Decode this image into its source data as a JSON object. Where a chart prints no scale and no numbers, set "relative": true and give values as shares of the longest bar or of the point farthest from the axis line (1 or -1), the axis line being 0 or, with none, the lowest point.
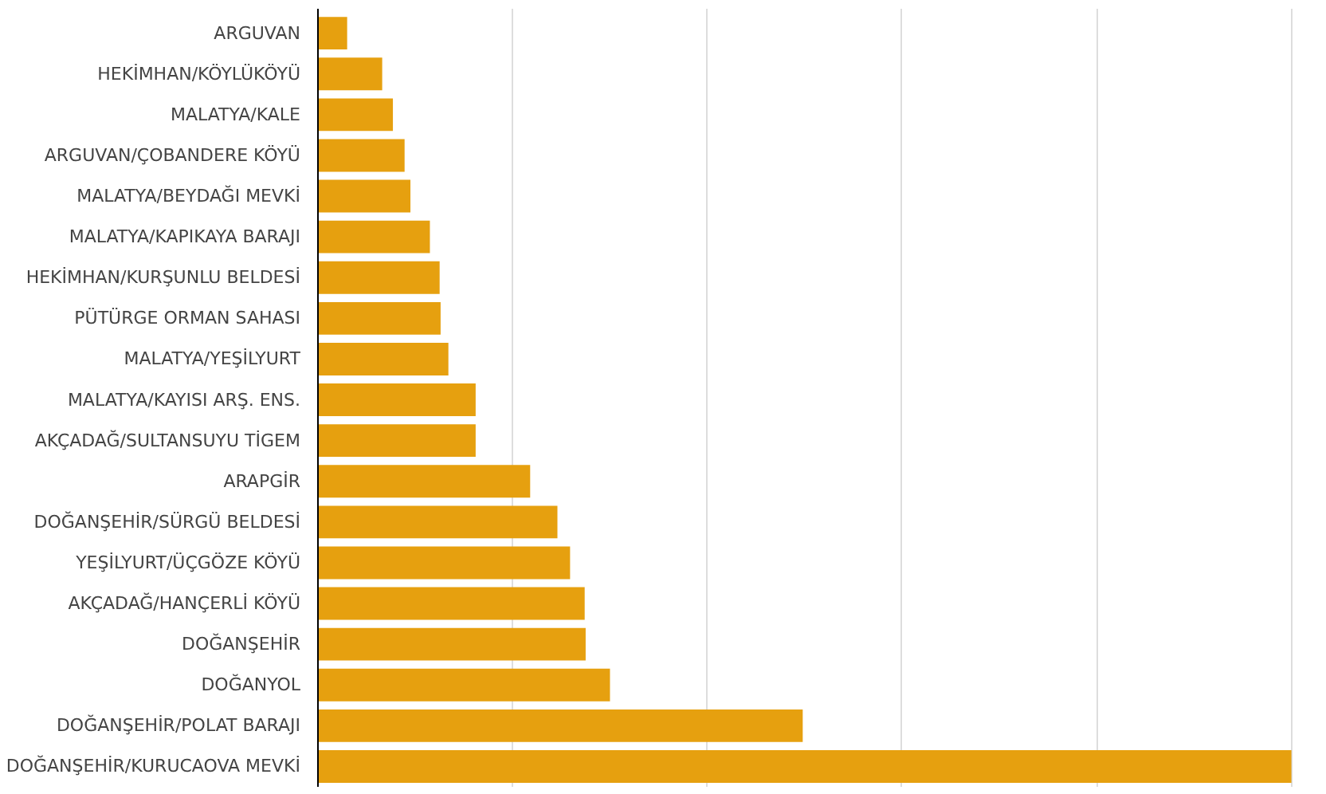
{
  "chart_data": {
    "type": "bar",
    "orientation": "horizontal",
    "relative": true,
    "grid": "x",
    "color": "#e6a00f",
    "categories": [
      "ARGUVAN",
      "HEKİMHAN/KÖYLÜKÖYÜ",
      "MALATYA/KALE",
      "ARGUVAN/ÇOBANDERE KÖYÜ",
      "MALATYA/BEYDAĞI MEVKİ",
      "MALATYA/KAPIKAYA BARAJI",
      "HEKİMHAN/KURŞUNLU BELDESİ",
      "PÜTÜRGE ORMAN SAHASI",
      "MALATYA/YEŞİLYURT",
      "MALATYA/KAYISI ARŞ. ENS.",
      "AKÇADAĞ/SULTANSUYU TİGEM",
      "ARAPGİR",
      "DOĞANŞEHİR/SÜRGÜ BELDESİ",
      "YEŞİLYURT/ÜÇGÖZE KÖYÜ",
      "AKÇADAĞ/HANÇERLİ KÖYÜ",
      "DOĞANŞEHİR",
      "DOĞANYOL",
      "DOĞANŞEHİR/POLAT BARAJI",
      "DOĞANŞEHİR/KURUCAOVA MEVKİ"
    ],
    "values": [
      0.03,
      0.066,
      0.077,
      0.089,
      0.095,
      0.115,
      0.125,
      0.126,
      0.134,
      0.162,
      0.162,
      0.218,
      0.246,
      0.259,
      0.274,
      0.275,
      0.3,
      0.498,
      1
    ]
  }
}
